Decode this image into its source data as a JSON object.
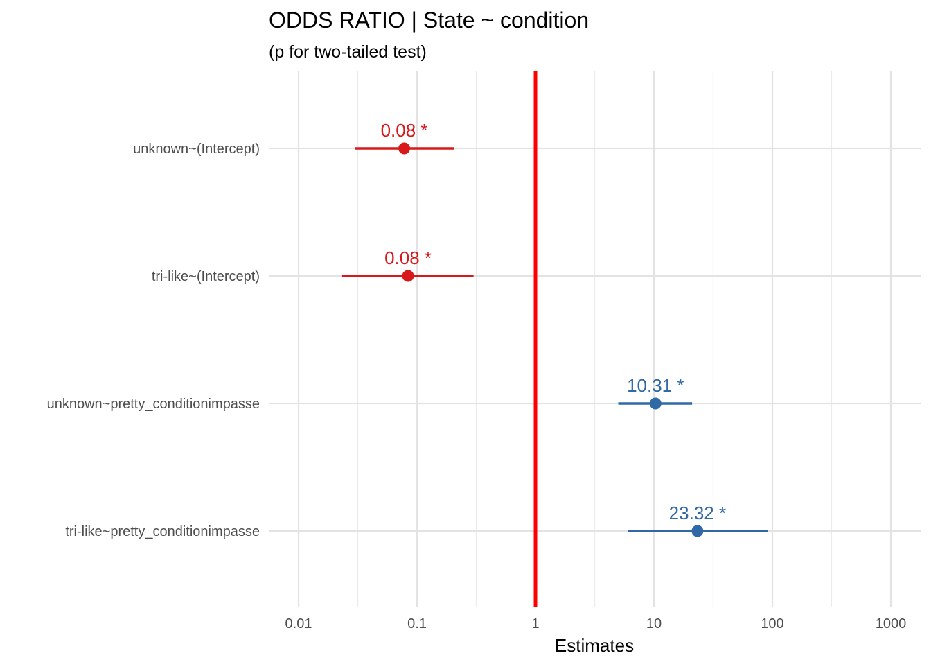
{
  "chart_data": {
    "type": "scatter",
    "subtype": "forest-plot-with-error-bars",
    "title": "ODDS RATIO | State ~ condition",
    "subtitle": "(p for  two-tailed test)",
    "xlabel": "Estimates",
    "ylabel": "",
    "x_scale": "log10",
    "xlim": [
      0.01,
      1000
    ],
    "x_ticks": [
      {
        "value": 0.01,
        "label": "0.01"
      },
      {
        "value": 0.1,
        "label": "0.1"
      },
      {
        "value": 1,
        "label": "1"
      },
      {
        "value": 10,
        "label": "10"
      },
      {
        "value": 100,
        "label": "100"
      },
      {
        "value": 1000,
        "label": "1000"
      }
    ],
    "x_minor_ticks": [
      0.0316,
      0.316,
      3.16,
      31.6,
      316
    ],
    "reference_line": {
      "value": 1,
      "color": "#ff0000"
    },
    "grid": true,
    "legend": "none",
    "colors": {
      "below_one": "#d7191c",
      "above_one": "#3069a6"
    },
    "categories": [
      "unknown~(Intercept)",
      "tri-like~(Intercept)",
      "unknown~pretty_conditionimpasse",
      "tri-like~pretty_conditionimpasse"
    ],
    "points": [
      {
        "term": "unknown~(Intercept)",
        "estimate": 0.078,
        "ci_low": 0.03,
        "ci_high": 0.205,
        "label": "0.08 *",
        "group": "below_one"
      },
      {
        "term": "tri-like~(Intercept)",
        "estimate": 0.084,
        "ci_low": 0.023,
        "ci_high": 0.3,
        "label": "0.08 *",
        "group": "below_one"
      },
      {
        "term": "unknown~pretty_conditionimpasse",
        "estimate": 10.31,
        "ci_low": 5.0,
        "ci_high": 21.0,
        "label": "10.31 *",
        "group": "above_one"
      },
      {
        "term": "tri-like~pretty_conditionimpasse",
        "estimate": 23.32,
        "ci_low": 6.0,
        "ci_high": 92.0,
        "label": "23.32 *",
        "group": "above_one"
      }
    ]
  }
}
